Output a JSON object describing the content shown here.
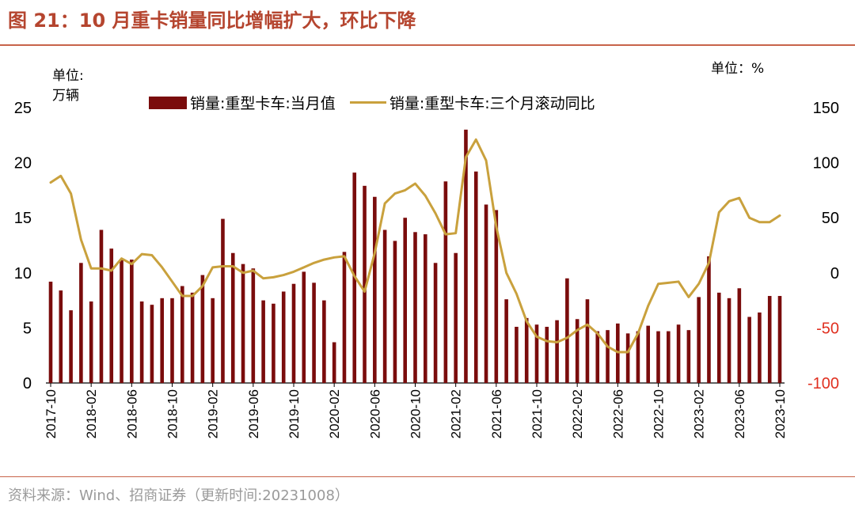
{
  "title": "图 21：10 月重卡销量同比增幅扩大，环比下降",
  "units": {
    "left_line1": "单位:",
    "left_line2": "万辆",
    "right": "单位：%"
  },
  "source": "资料来源：Wind、招商证券（更新时间:20231008）",
  "colors": {
    "bar": "#7a0c0c",
    "line": "#c9a13d",
    "negative_tick": "#e03020",
    "title": "#b5452f"
  },
  "chart_data": {
    "type": "bar+line",
    "x": [
      "2017-10",
      "2017-11",
      "2017-12",
      "2018-01",
      "2018-02",
      "2018-03",
      "2018-04",
      "2018-05",
      "2018-06",
      "2018-07",
      "2018-08",
      "2018-09",
      "2018-10",
      "2018-11",
      "2018-12",
      "2019-01",
      "2019-02",
      "2019-03",
      "2019-04",
      "2019-05",
      "2019-06",
      "2019-07",
      "2019-08",
      "2019-09",
      "2019-10",
      "2019-11",
      "2019-12",
      "2020-01",
      "2020-02",
      "2020-03",
      "2020-04",
      "2020-05",
      "2020-06",
      "2020-07",
      "2020-08",
      "2020-09",
      "2020-10",
      "2020-11",
      "2020-12",
      "2021-01",
      "2021-02",
      "2021-03",
      "2021-04",
      "2021-05",
      "2021-06",
      "2021-07",
      "2021-08",
      "2021-09",
      "2021-10",
      "2021-11",
      "2021-12",
      "2022-01",
      "2022-02",
      "2022-03",
      "2022-04",
      "2022-05",
      "2022-06",
      "2022-07",
      "2022-08",
      "2022-09",
      "2022-10",
      "2022-11",
      "2022-12",
      "2023-01",
      "2023-02",
      "2023-03",
      "2023-04",
      "2023-05",
      "2023-06",
      "2023-07",
      "2023-08",
      "2023-09",
      "2023-10"
    ],
    "xtick_labels": [
      "2017-10",
      "2018-02",
      "2018-06",
      "2018-10",
      "2019-02",
      "2019-06",
      "2019-10",
      "2020-02",
      "2020-06",
      "2020-10",
      "2021-02",
      "2021-06",
      "2021-10",
      "2022-02",
      "2022-06",
      "2022-10",
      "2023-02",
      "2023-06",
      "2023-10"
    ],
    "series": [
      {
        "name": "销量:重型卡车:当月值",
        "type": "bar",
        "axis": "left",
        "values": [
          9.2,
          8.4,
          6.6,
          10.9,
          7.4,
          13.9,
          12.2,
          11.2,
          11.2,
          7.4,
          7.1,
          7.7,
          7.7,
          8.8,
          8.2,
          9.8,
          7.7,
          14.9,
          11.8,
          10.8,
          10.4,
          7.5,
          7.2,
          8.3,
          9.0,
          10.1,
          9.1,
          7.5,
          3.7,
          11.9,
          19.1,
          17.9,
          16.9,
          13.9,
          12.9,
          15.0,
          13.7,
          13.5,
          10.9,
          18.3,
          11.8,
          23.0,
          19.2,
          16.2,
          15.7,
          7.6,
          5.1,
          5.9,
          5.3,
          5.1,
          5.7,
          9.5,
          5.8,
          7.6,
          4.7,
          4.8,
          5.4,
          4.5,
          4.7,
          5.2,
          4.7,
          4.7,
          5.3,
          4.8,
          7.8,
          11.5,
          8.2,
          7.7,
          8.6,
          6.0,
          6.4,
          7.9,
          7.9
        ]
      },
      {
        "name": "销量:重型卡车:三个月滚动同比",
        "type": "line",
        "axis": "right",
        "values": [
          82,
          88,
          72,
          30,
          4,
          4,
          2,
          13,
          8,
          17,
          16,
          5,
          -8,
          -21,
          -21,
          -12,
          5,
          6,
          6,
          0,
          2,
          -5,
          -4,
          -2,
          1,
          5,
          9,
          12,
          14,
          15,
          -3,
          -17,
          18,
          63,
          72,
          75,
          81,
          70,
          54,
          35,
          36,
          105,
          121,
          102,
          42,
          0,
          -19,
          -44,
          -58,
          -62,
          -63,
          -59,
          -52,
          -47,
          -55,
          -67,
          -72,
          -72,
          -55,
          -30,
          -10,
          -9,
          -8,
          -22,
          -10,
          9,
          55,
          65,
          68,
          50,
          46,
          46,
          52
        ]
      }
    ],
    "y_left": {
      "range": [
        0,
        25
      ],
      "ticks": [
        0,
        5,
        10,
        15,
        20,
        25
      ]
    },
    "y_right": {
      "range": [
        -100,
        150
      ],
      "ticks": [
        -100,
        -50,
        0,
        50,
        100,
        150
      ]
    }
  }
}
